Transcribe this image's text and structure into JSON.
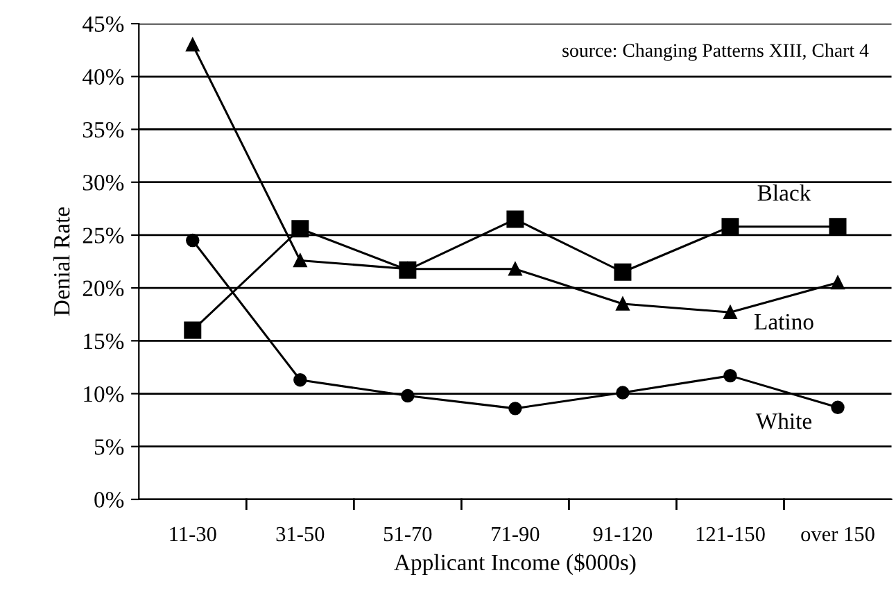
{
  "chart_data": {
    "type": "line",
    "xlabel": "Applicant Income ($000s)",
    "ylabel": "Denial Rate",
    "categories": [
      "11-30",
      "31-50",
      "51-70",
      "71-90",
      "91-120",
      "121-150",
      "over 150"
    ],
    "series": [
      {
        "name": "Black",
        "color": "#000000",
        "marker": "square",
        "values": [
          16,
          25.6,
          21.7,
          26.5,
          21.5,
          25.8,
          25.8
        ]
      },
      {
        "name": "Latino",
        "color": "#000000",
        "marker": "triangle",
        "values": [
          43,
          22.6,
          21.8,
          21.8,
          18.5,
          17.7,
          20.5
        ]
      },
      {
        "name": "White",
        "color": "#000000",
        "marker": "circle",
        "values": [
          24.5,
          11.3,
          9.8,
          8.6,
          10.1,
          11.7,
          8.7
        ]
      }
    ],
    "ylim": [
      0,
      45
    ],
    "yticks": [
      {
        "value": 0,
        "label": "0%"
      },
      {
        "value": 5,
        "label": "5%"
      },
      {
        "value": 10,
        "label": "10%"
      },
      {
        "value": 15,
        "label": "15%"
      },
      {
        "value": 20,
        "label": "20%"
      },
      {
        "value": 25,
        "label": "25%"
      },
      {
        "value": 30,
        "label": "30%"
      },
      {
        "value": 35,
        "label": "35%"
      },
      {
        "value": 40,
        "label": "40%"
      },
      {
        "value": 45,
        "label": "45%"
      }
    ],
    "grid": "y",
    "legend": false,
    "line_style": "solid",
    "annotations": [
      "source: Changing Patterns XIII, Chart 4"
    ]
  }
}
